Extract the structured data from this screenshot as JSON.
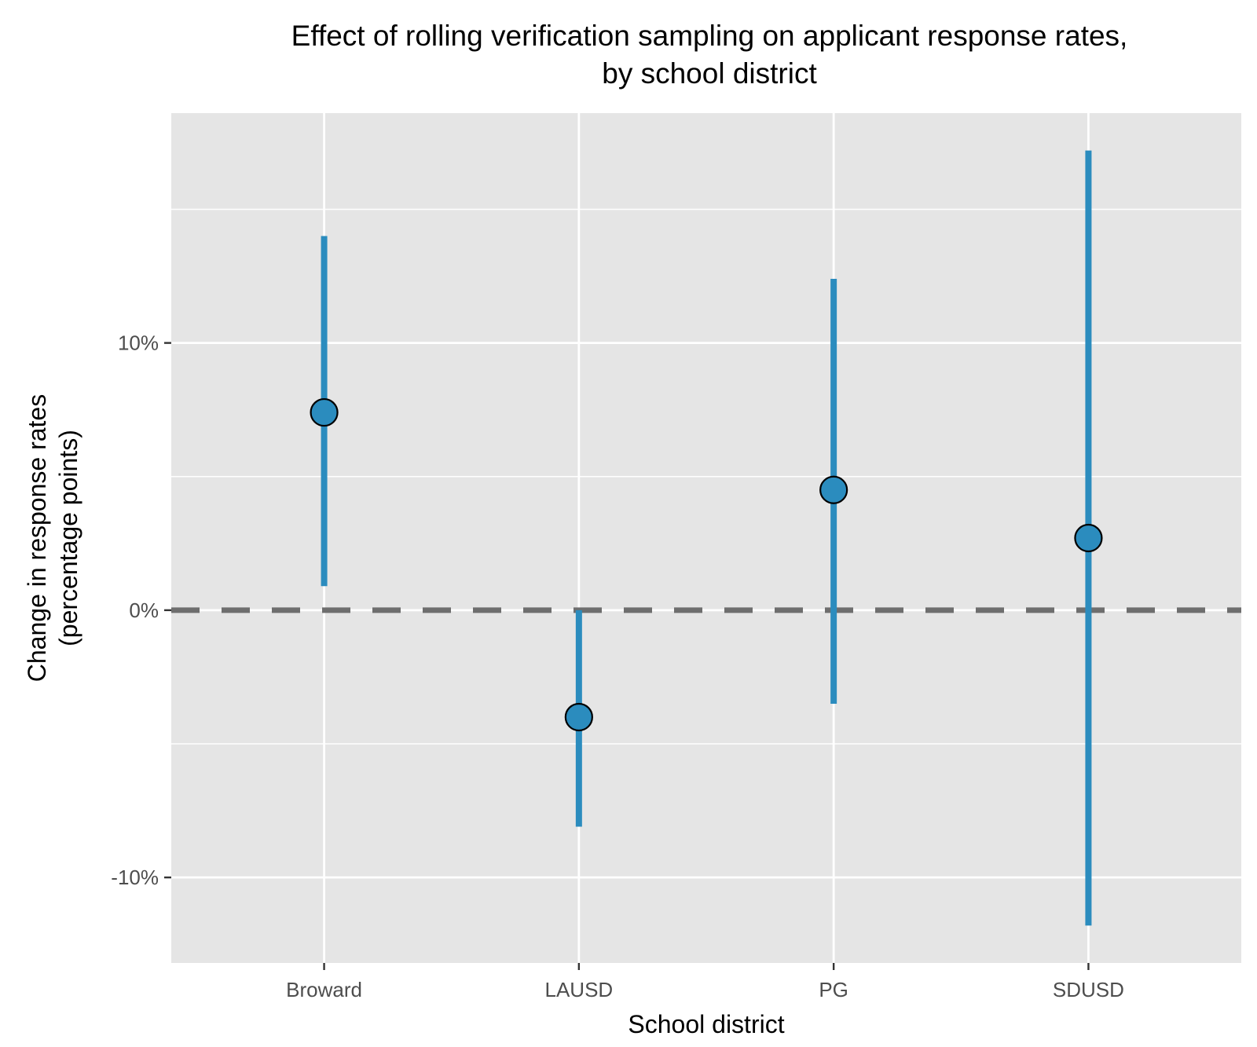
{
  "chart_data": {
    "type": "scatter",
    "subtype": "point-range",
    "title_lines": [
      "Effect of rolling verification sampling on applicant response rates,",
      "by school district"
    ],
    "xlabel": "School district",
    "ylabel_lines": [
      "Change in response rates",
      "(percentage points)"
    ],
    "categories": [
      "Broward",
      "LAUSD",
      "PG",
      "SDUSD"
    ],
    "series": [
      {
        "estimate": [
          7.4,
          -4.0,
          4.5,
          2.7
        ],
        "ci_low": [
          0.9,
          -8.1,
          -3.5,
          -11.8
        ],
        "ci_high": [
          14.0,
          0.0,
          12.4,
          17.2
        ]
      }
    ],
    "ylim": [
      -13.2,
      18.6
    ],
    "yticks": [
      -10,
      0,
      10
    ],
    "ytick_labels": [
      "-10%",
      "0%",
      "10%"
    ],
    "reference_line": {
      "y": 0,
      "style": "dashed"
    },
    "grid": true,
    "legend": "none",
    "colors": {
      "point_fill": "#2b8cbe",
      "errorbar": "#2b8cbe",
      "point_outline": "#000000",
      "panel_background": "#e5e5e5",
      "gridline": "#ffffff",
      "reference_line": "#6e6e6e"
    }
  }
}
